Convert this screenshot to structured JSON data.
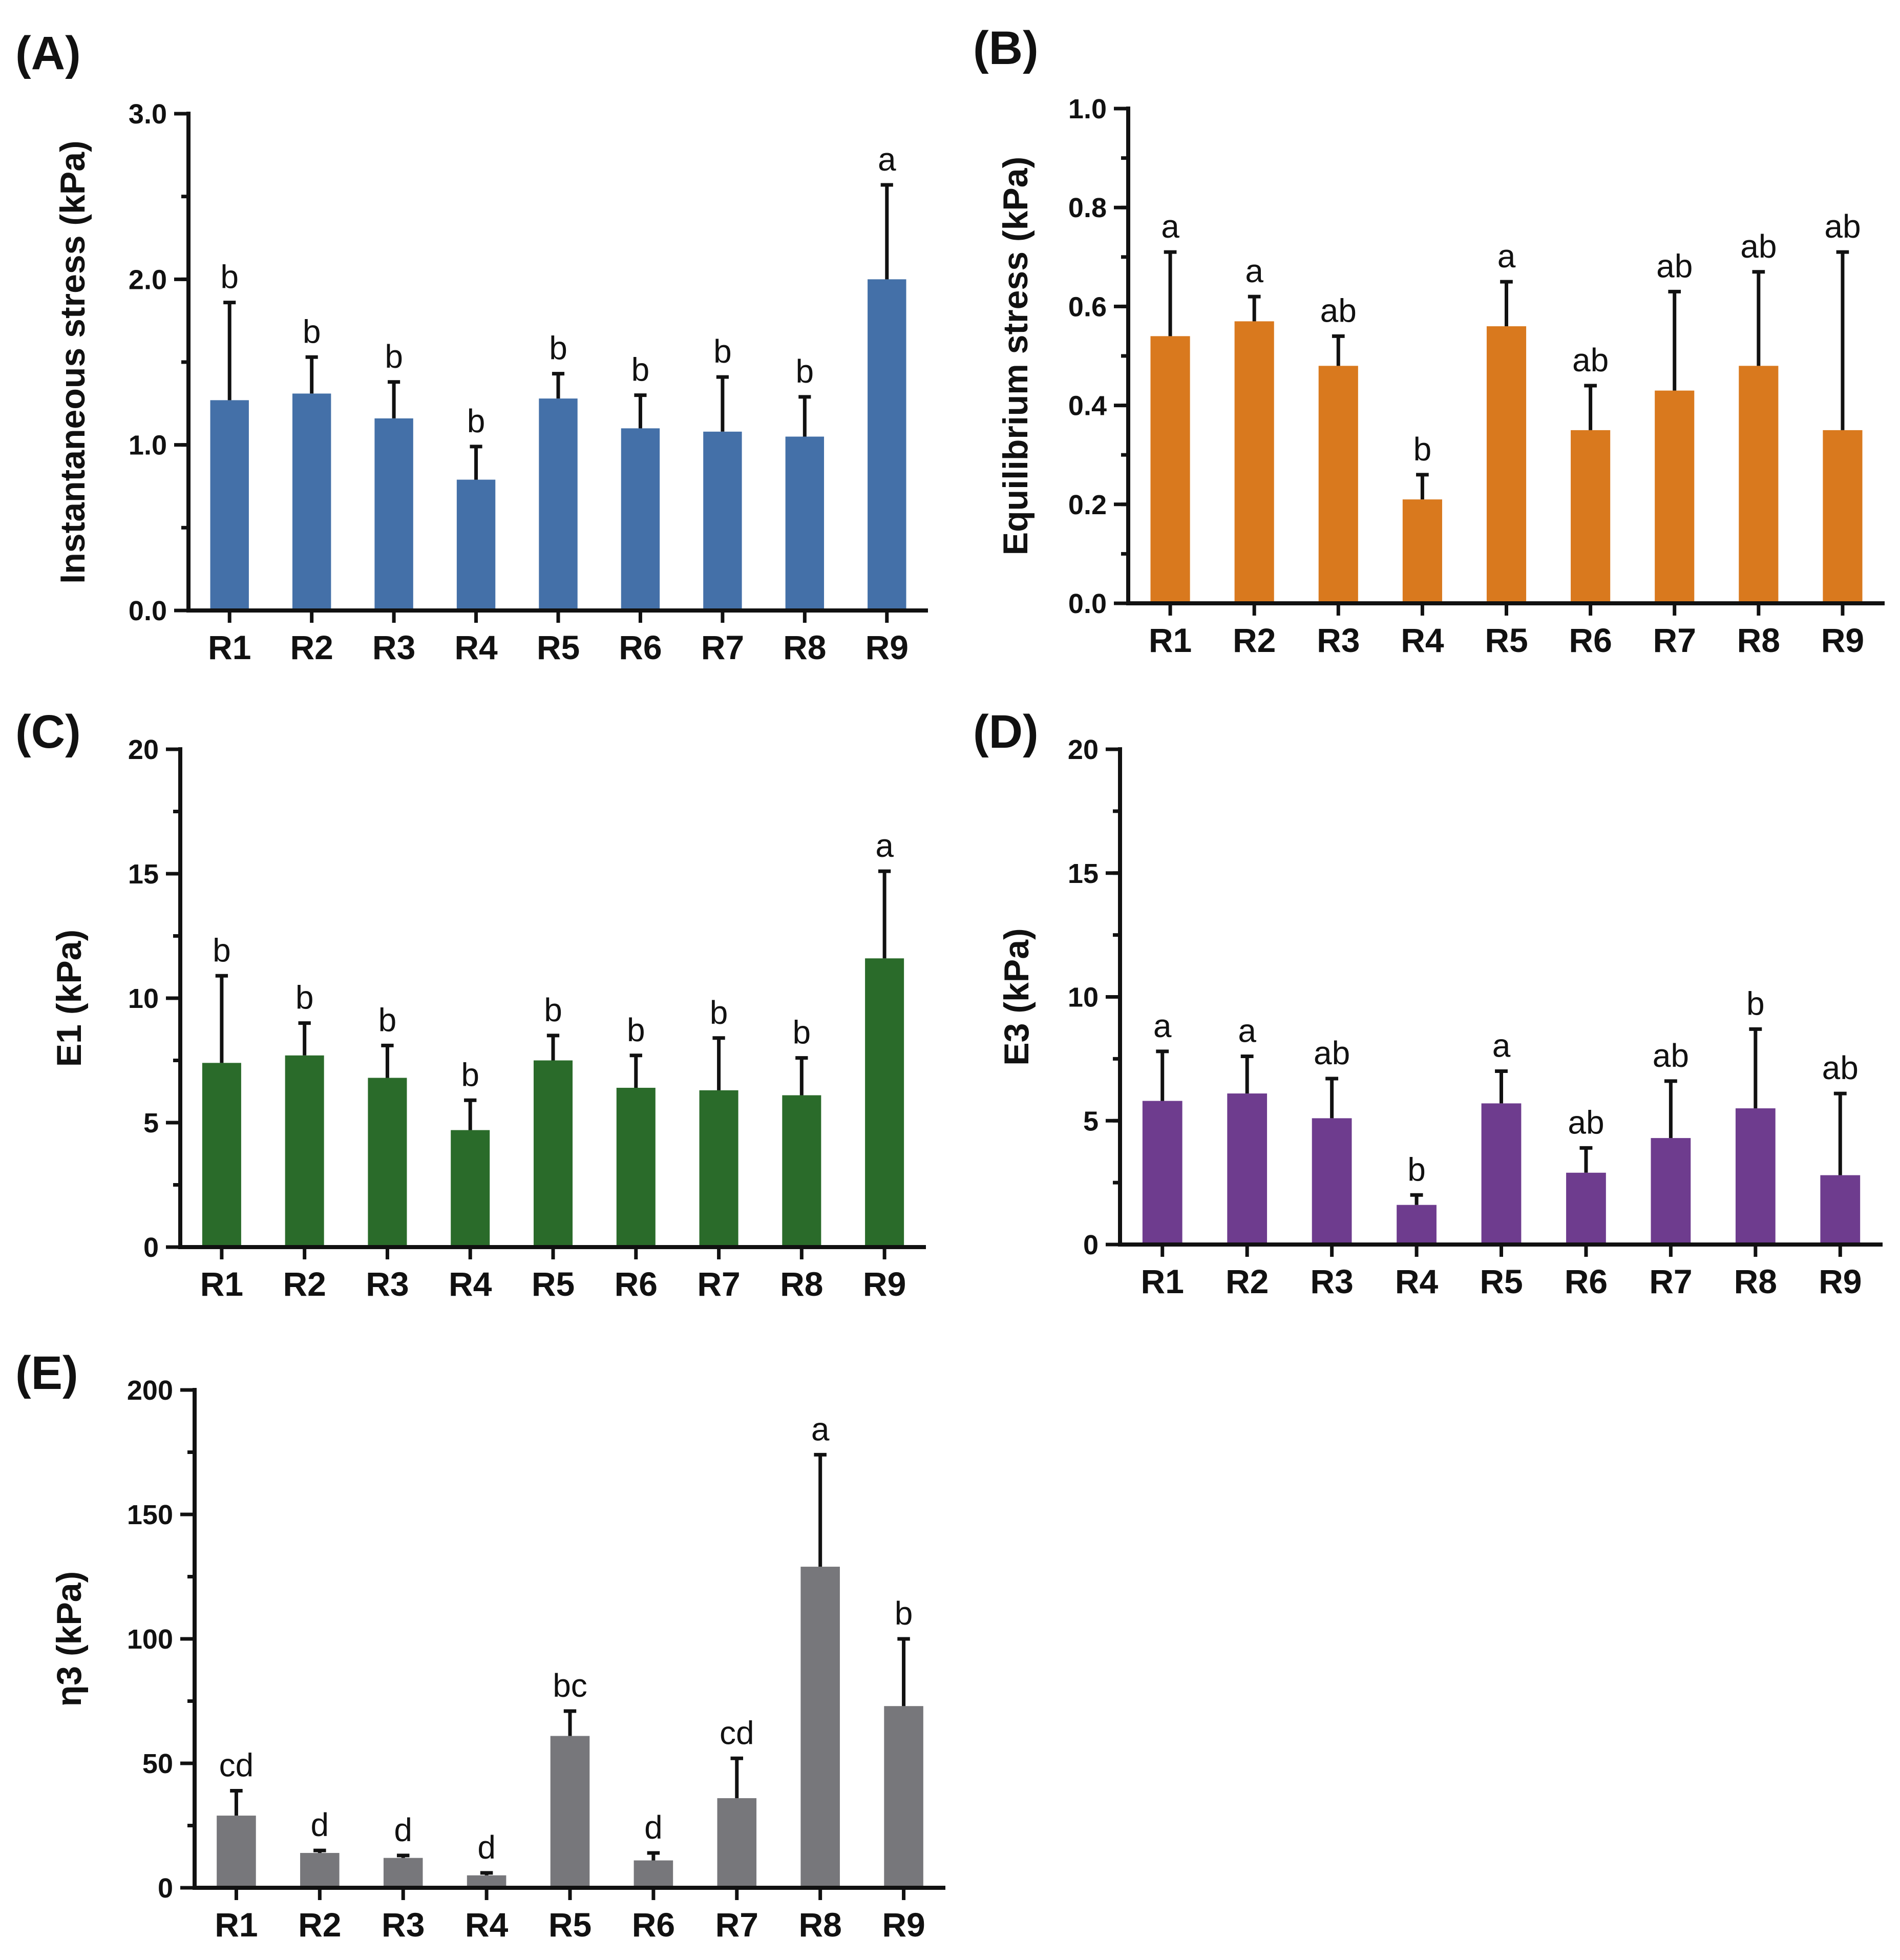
{
  "chart_data": [
    {
      "panel": "(A)",
      "type": "bar",
      "ylabel": "Instantaneous stress (kPa)",
      "xlabel": "",
      "ylim": [
        0,
        3.0
      ],
      "yticks": [
        0.0,
        1.0,
        2.0,
        3.0
      ],
      "ytick_labels": [
        "0.0",
        "1.0",
        "2.0",
        "3.0"
      ],
      "minor_step": 0.5,
      "color": "#4470A8",
      "categories": [
        "R1",
        "R2",
        "R3",
        "R4",
        "R5",
        "R6",
        "R7",
        "R8",
        "R9"
      ],
      "values": [
        1.27,
        1.31,
        1.16,
        0.79,
        1.28,
        1.1,
        1.08,
        1.05,
        2.0
      ],
      "errors": [
        0.59,
        0.22,
        0.22,
        0.2,
        0.15,
        0.2,
        0.33,
        0.24,
        0.57
      ],
      "significance": [
        "b",
        "b",
        "b",
        "b",
        "b",
        "b",
        "b",
        "b",
        "a"
      ]
    },
    {
      "panel": "(B)",
      "type": "bar",
      "ylabel": "Equilibrium stress (kPa)",
      "xlabel": "",
      "ylim": [
        0,
        1.0
      ],
      "yticks": [
        0.0,
        0.2,
        0.4,
        0.6,
        0.8,
        1.0
      ],
      "ytick_labels": [
        "0.0",
        "0.2",
        "0.4",
        "0.6",
        "0.8",
        "1.0"
      ],
      "minor_step": 0.1,
      "color": "#D9791E",
      "categories": [
        "R1",
        "R2",
        "R3",
        "R4",
        "R5",
        "R6",
        "R7",
        "R8",
        "R9"
      ],
      "values": [
        0.54,
        0.57,
        0.48,
        0.21,
        0.56,
        0.35,
        0.43,
        0.48,
        0.35
      ],
      "errors": [
        0.17,
        0.05,
        0.06,
        0.05,
        0.09,
        0.09,
        0.2,
        0.19,
        0.36
      ],
      "significance": [
        "a",
        "a",
        "ab",
        "b",
        "a",
        "ab",
        "ab",
        "ab",
        "ab"
      ]
    },
    {
      "panel": "(C)",
      "type": "bar",
      "ylabel": "E1 (kPa)",
      "xlabel": "",
      "ylim": [
        0,
        20
      ],
      "yticks": [
        0,
        5,
        10,
        15,
        20
      ],
      "ytick_labels": [
        "0",
        "5",
        "10",
        "15",
        "20"
      ],
      "minor_step": 2.5,
      "color": "#2A6B2A",
      "categories": [
        "R1",
        "R2",
        "R3",
        "R4",
        "R5",
        "R6",
        "R7",
        "R8",
        "R9"
      ],
      "values": [
        7.4,
        7.7,
        6.8,
        4.7,
        7.5,
        6.4,
        6.3,
        6.1,
        11.6
      ],
      "errors": [
        3.5,
        1.3,
        1.3,
        1.2,
        1.0,
        1.3,
        2.1,
        1.5,
        3.5
      ],
      "significance": [
        "b",
        "b",
        "b",
        "b",
        "b",
        "b",
        "b",
        "b",
        "a"
      ]
    },
    {
      "panel": "(D)",
      "type": "bar",
      "ylabel": "E3 (kPa)",
      "xlabel": "",
      "ylim": [
        0,
        20
      ],
      "yticks": [
        0,
        5,
        10,
        15,
        20
      ],
      "ytick_labels": [
        "0",
        "5",
        "10",
        "15",
        "20"
      ],
      "minor_step": 2.5,
      "color": "#6E3C8E",
      "categories": [
        "R1",
        "R2",
        "R3",
        "R4",
        "R5",
        "R6",
        "R7",
        "R8",
        "R9"
      ],
      "values": [
        5.8,
        6.1,
        5.1,
        1.6,
        5.7,
        2.9,
        4.3,
        5.5,
        2.8
      ],
      "errors": [
        2.0,
        1.5,
        1.6,
        0.4,
        1.3,
        1.0,
        2.3,
        3.2,
        3.3
      ],
      "significance": [
        "a",
        "a",
        "ab",
        "b",
        "a",
        "ab",
        "ab",
        "b",
        "ab"
      ]
    },
    {
      "panel": "(E)",
      "type": "bar",
      "ylabel": "η3 (kPa)",
      "xlabel": "",
      "ylim": [
        0,
        200
      ],
      "yticks": [
        0,
        50,
        100,
        150,
        200
      ],
      "ytick_labels": [
        "0",
        "50",
        "100",
        "150",
        "200"
      ],
      "minor_step": 25,
      "color": "#77777B",
      "categories": [
        "R1",
        "R2",
        "R3",
        "R4",
        "R5",
        "R6",
        "R7",
        "R8",
        "R9"
      ],
      "values": [
        29,
        14,
        12,
        5,
        61,
        11,
        36,
        129,
        73
      ],
      "errors": [
        10,
        1,
        1,
        1,
        10,
        3,
        16,
        45,
        27
      ],
      "significance": [
        "cd",
        "d",
        "d",
        "d",
        "bc",
        "d",
        "cd",
        "a",
        "b"
      ]
    }
  ]
}
